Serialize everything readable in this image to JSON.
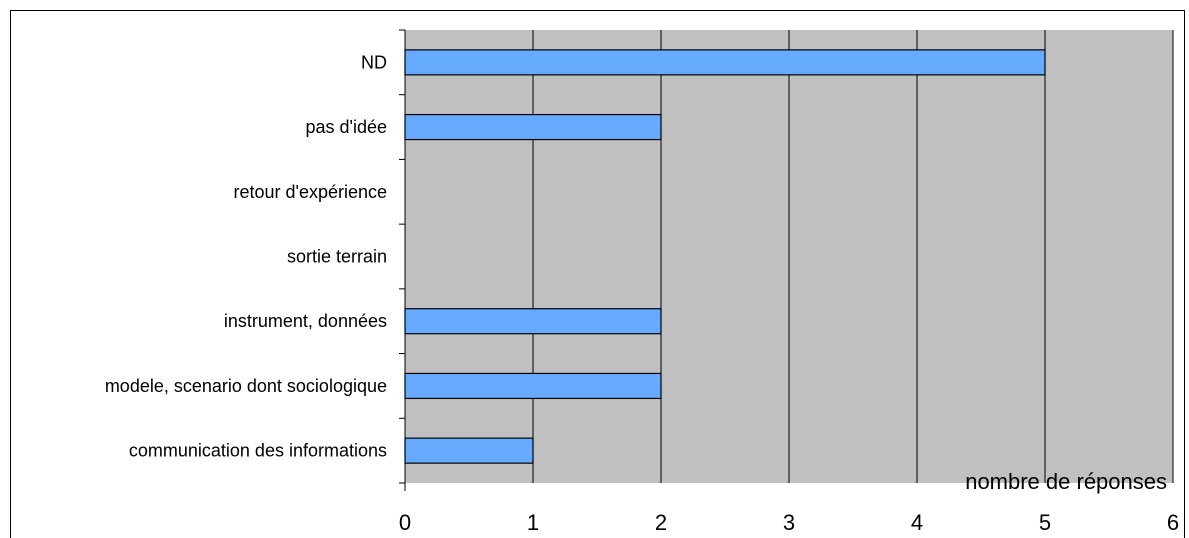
{
  "chart_data": {
    "type": "bar",
    "orientation": "horizontal",
    "categories": [
      "ND",
      "pas d'idée",
      "retour d'expérience",
      "sortie terrain",
      "instrument, données",
      "modele, scenario dont sociologique",
      "communication des informations"
    ],
    "values": [
      5,
      2,
      0,
      0,
      2,
      2,
      1
    ],
    "xlabel": "nombre de réponses",
    "ylabel": "",
    "title": "",
    "xlim": [
      0,
      6
    ],
    "xticks": [
      "0",
      "1",
      "2",
      "3",
      "4",
      "5",
      "6"
    ],
    "grid": true,
    "colors": {
      "bar": "#66aaff",
      "bar_border": "#000000",
      "plot_background": "#c0c0c0",
      "gridline": "#000000"
    }
  }
}
